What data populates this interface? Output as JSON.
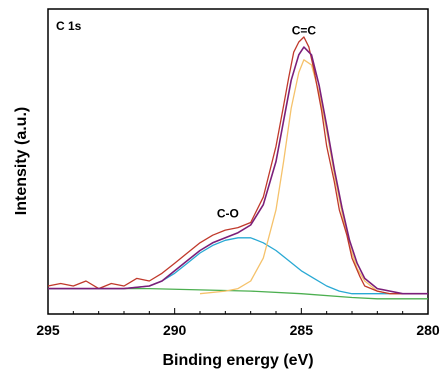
{
  "chart_data": {
    "type": "line",
    "panel_label": "C 1s",
    "xlabel": "Binding energy (eV)",
    "ylabel": "Intensity (a.u.)",
    "x_reversed": true,
    "xlim": [
      295,
      280
    ],
    "ylim": [
      -0.08,
      1.12
    ],
    "x_ticks": [
      295,
      290,
      285,
      280
    ],
    "y_ticks_labeled": false,
    "grid": false,
    "legend": "none",
    "annotations": [
      {
        "text": "C-O",
        "x": 287.9,
        "y": 0.3
      },
      {
        "text": "C=C",
        "x": 284.9,
        "y": 1.02
      }
    ],
    "series": [
      {
        "role": "raw-spectrum",
        "color": "#c0392b",
        "x": [
          295.0,
          294.5,
          294.0,
          293.5,
          293.0,
          292.5,
          292.0,
          291.5,
          291.0,
          290.5,
          290.0,
          289.5,
          289.0,
          288.5,
          288.0,
          287.5,
          287.0,
          286.5,
          286.0,
          285.7,
          285.5,
          285.3,
          285.1,
          284.9,
          284.7,
          284.5,
          284.2,
          284.0,
          283.7,
          283.5,
          283.2,
          283.0,
          282.7,
          282.5,
          282.0,
          281.5,
          281.0,
          280.5,
          280.0
        ],
        "y": [
          0.03,
          0.04,
          0.03,
          0.05,
          0.02,
          0.04,
          0.03,
          0.06,
          0.05,
          0.08,
          0.12,
          0.16,
          0.2,
          0.23,
          0.25,
          0.26,
          0.28,
          0.38,
          0.58,
          0.74,
          0.85,
          0.95,
          0.99,
          1.01,
          0.97,
          0.88,
          0.72,
          0.58,
          0.44,
          0.33,
          0.23,
          0.14,
          0.07,
          0.03,
          0.01,
          0.0,
          0.0,
          0.0,
          0.0
        ]
      },
      {
        "role": "envelope",
        "color": "#7b1f7a",
        "x": [
          295.0,
          294.0,
          293.0,
          292.0,
          291.0,
          290.5,
          290.0,
          289.5,
          289.0,
          288.5,
          288.0,
          287.5,
          287.0,
          286.5,
          286.0,
          285.7,
          285.4,
          285.1,
          284.9,
          284.6,
          284.3,
          284.0,
          283.7,
          283.4,
          283.1,
          282.8,
          282.5,
          282.0,
          281.5,
          281.0,
          280.5,
          280.0
        ],
        "y": [
          0.02,
          0.02,
          0.02,
          0.02,
          0.03,
          0.05,
          0.09,
          0.13,
          0.17,
          0.2,
          0.22,
          0.24,
          0.27,
          0.35,
          0.52,
          0.68,
          0.84,
          0.94,
          0.97,
          0.94,
          0.82,
          0.66,
          0.49,
          0.34,
          0.21,
          0.12,
          0.06,
          0.02,
          0.01,
          0.0,
          0.0,
          0.0
        ]
      },
      {
        "role": "C=C component",
        "color": "#f5c26b",
        "x": [
          289.0,
          288.0,
          287.5,
          287.0,
          286.5,
          286.0,
          285.7,
          285.4,
          285.1,
          284.9,
          284.6,
          284.3,
          284.0,
          283.7,
          283.4,
          283.1,
          282.8,
          282.5,
          282.0,
          281.5,
          281.0,
          280.0
        ],
        "y": [
          0.0,
          0.01,
          0.02,
          0.05,
          0.14,
          0.33,
          0.52,
          0.73,
          0.87,
          0.92,
          0.9,
          0.79,
          0.64,
          0.47,
          0.32,
          0.19,
          0.1,
          0.05,
          0.01,
          0.0,
          0.0,
          0.0
        ]
      },
      {
        "role": "C-O component",
        "color": "#29a9d4",
        "x": [
          295.0,
          292.0,
          291.0,
          290.5,
          290.0,
          289.5,
          289.0,
          288.5,
          288.0,
          287.5,
          287.0,
          286.5,
          286.0,
          285.5,
          285.0,
          284.5,
          284.0,
          283.5,
          283.0,
          282.5,
          282.0,
          281.0,
          280.0
        ],
        "y": [
          0.02,
          0.02,
          0.03,
          0.05,
          0.08,
          0.12,
          0.16,
          0.19,
          0.21,
          0.22,
          0.22,
          0.2,
          0.17,
          0.13,
          0.09,
          0.06,
          0.03,
          0.01,
          0.0,
          0.0,
          0.0,
          0.0,
          0.0
        ]
      },
      {
        "role": "background",
        "color": "#4caf50",
        "x": [
          295.0,
          293.0,
          291.0,
          289.0,
          287.0,
          285.0,
          283.0,
          282.0,
          281.0,
          280.0
        ],
        "y": [
          0.02,
          0.02,
          0.02,
          0.015,
          0.01,
          0.0,
          -0.015,
          -0.02,
          -0.02,
          -0.02
        ]
      }
    ]
  }
}
